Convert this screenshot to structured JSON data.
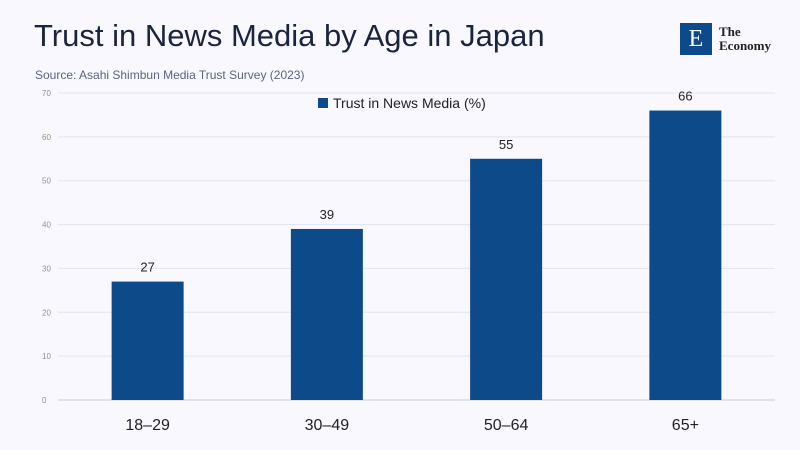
{
  "header": {
    "title": "Trust in News Media by Age in Japan",
    "source": "Source: Asahi Shimbun Media Trust Survey (2023)"
  },
  "logo": {
    "letter": "E",
    "line1": "The",
    "line2": "Economy"
  },
  "chart_data": {
    "type": "bar",
    "title": "Trust in News Media by Age in Japan",
    "categories": [
      "18–29",
      "30–49",
      "50–64",
      "65+"
    ],
    "series": [
      {
        "name": "Trust in News Media (%)",
        "values": [
          27,
          39,
          55,
          66
        ]
      }
    ],
    "ylim": [
      0,
      70
    ],
    "yticks": [
      0,
      10,
      20,
      30,
      40,
      50,
      60,
      70
    ],
    "grid": true,
    "legend": "top-center",
    "colors": {
      "bar": "#0d4a8a",
      "grid": "#e2e4ee"
    }
  }
}
